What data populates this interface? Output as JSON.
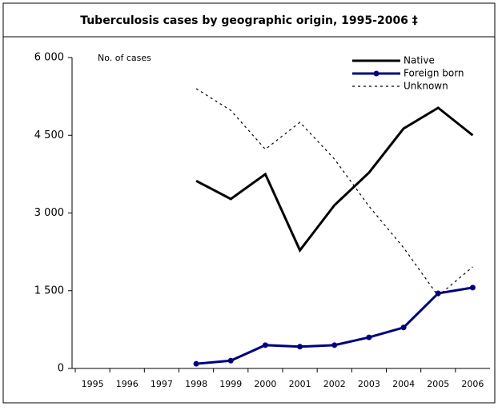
{
  "chart_data": {
    "type": "line",
    "title": "Tuberculosis cases by geographic origin, 1995-2006 ‡",
    "y_label": "No. of cases",
    "categories": [
      "1995",
      "1996",
      "1997",
      "1998",
      "1999",
      "2000",
      "2001",
      "2002",
      "2003",
      "2004",
      "2005",
      "2006"
    ],
    "series": [
      {
        "name": "Native",
        "color": "#000000",
        "line_style": "solid",
        "markers": false,
        "values": [
          null,
          null,
          null,
          3620,
          3270,
          3750,
          2280,
          3150,
          3780,
          4630,
          5030,
          4500
        ]
      },
      {
        "name": "Foreign born",
        "color": "#000080",
        "line_style": "solid",
        "markers": true,
        "values": [
          null,
          null,
          null,
          90,
          150,
          450,
          420,
          450,
          600,
          790,
          1450,
          1560
        ]
      },
      {
        "name": "Unknown",
        "color": "#000000",
        "line_style": "dotted",
        "markers": false,
        "values": [
          null,
          null,
          null,
          5400,
          4980,
          4230,
          4750,
          4040,
          3130,
          2330,
          1400,
          1960
        ]
      }
    ],
    "ylim": [
      0,
      6000
    ],
    "yticks": [
      0,
      {
        "value": 1500,
        "label": "1 500"
      },
      {
        "value": 3000,
        "label": "3 000"
      },
      {
        "value": 4500,
        "label": "4 500"
      },
      {
        "value": 6000,
        "label": "6 000"
      }
    ],
    "grid": false,
    "legend": "top-right"
  }
}
